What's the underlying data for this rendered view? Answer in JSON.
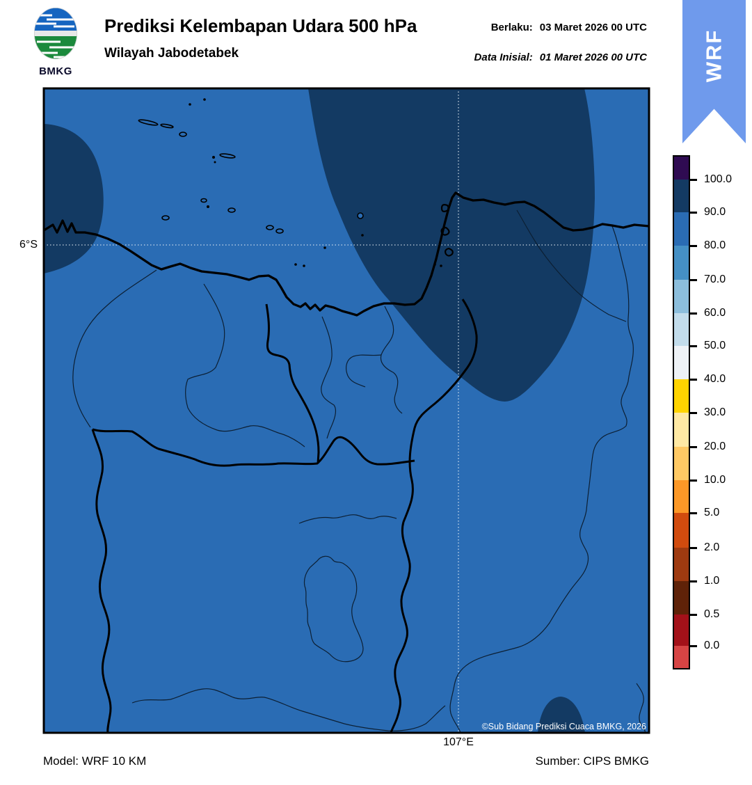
{
  "header": {
    "logo_text": "BMKG",
    "title": "Prediksi Kelembapan Udara 500 hPa",
    "subtitle": "Wilayah Jabodetabek",
    "valid_label": "Berlaku:",
    "valid_value": "03 Maret 2026 00 UTC",
    "init_label": "Data Inisial:",
    "init_value": "01 Maret 2026 00 UTC"
  },
  "ribbon": {
    "label": "WRF",
    "color": "#6f9aec"
  },
  "map": {
    "lat_tick_label": "6°S",
    "lon_tick_label": "107°E",
    "copyright": "©Sub Bidang Prediksi Cuaca BMKG, 2026",
    "colors": {
      "humidity_80_90_base": "#2a6cb4",
      "humidity_90_100": "#133a63",
      "coastline": "#000000",
      "gridline": "#e8eef5"
    }
  },
  "colorbar": {
    "labels": [
      "100.0",
      "90.0",
      "80.0",
      "70.0",
      "60.0",
      "50.0",
      "40.0",
      "30.0",
      "20.0",
      "10.0",
      "5.0",
      "2.0",
      "1.0",
      "0.5",
      "0.0"
    ],
    "colors": [
      "#2f0b52",
      "#133a63",
      "#2a6cb4",
      "#4590c5",
      "#8cbedc",
      "#c2dceb",
      "#eef2f6",
      "#ffd400",
      "#ffe9a4",
      "#ffc964",
      "#fc9827",
      "#d14b0e",
      "#9e3a10",
      "#5f2208",
      "#a31119",
      "#d64444"
    ]
  },
  "footer": {
    "model": "Model: WRF 10 KM",
    "source": "Sumber: CIPS BMKG"
  }
}
